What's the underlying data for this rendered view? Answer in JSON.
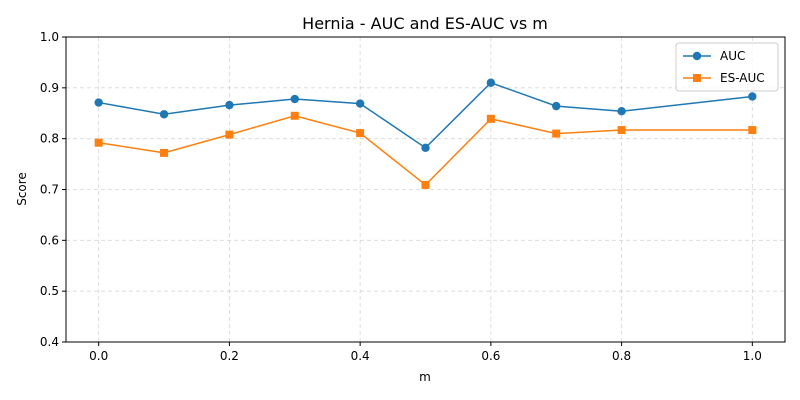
{
  "chart_data": {
    "type": "line",
    "title": "Hernia - AUC and ES-AUC vs m",
    "xlabel": "m",
    "ylabel": "Score",
    "x": [
      0.0,
      0.1,
      0.2,
      0.3,
      0.4,
      0.5,
      0.6,
      0.7,
      0.8,
      1.0
    ],
    "series": [
      {
        "name": "AUC",
        "color": "#1f77b4",
        "marker": "circle",
        "values": [
          0.871,
          0.848,
          0.866,
          0.878,
          0.869,
          0.782,
          0.91,
          0.864,
          0.854,
          0.883
        ]
      },
      {
        "name": "ES-AUC",
        "color": "#ff7f0e",
        "marker": "square",
        "values": [
          0.792,
          0.772,
          0.808,
          0.845,
          0.811,
          0.709,
          0.839,
          0.81,
          0.817,
          0.817
        ]
      }
    ],
    "xlim": [
      -0.05,
      1.05
    ],
    "ylim": [
      0.4,
      1.0
    ],
    "xticks": [
      "0.0",
      "0.2",
      "0.4",
      "0.6",
      "0.8",
      "1.0"
    ],
    "yticks": [
      "0.4",
      "0.5",
      "0.6",
      "0.7",
      "0.8",
      "0.9",
      "1.0"
    ],
    "grid": true,
    "legend_position": "top-right"
  }
}
